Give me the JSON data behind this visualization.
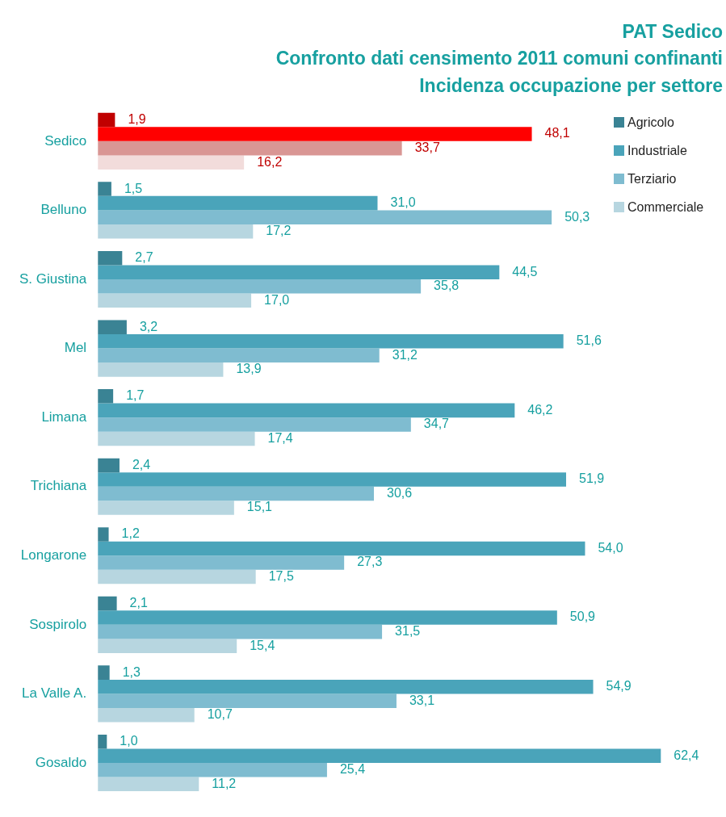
{
  "chart_data": {
    "type": "bar",
    "orientation": "horizontal",
    "title": "PAT Sedico",
    "subtitle": "Confronto dati censimento 2011 comuni confinanti",
    "annotations": [
      "Incidenza occupazione per settore"
    ],
    "categories": [
      "Sedico",
      "Belluno",
      "S. Giustina",
      "Mel",
      "Limana",
      "Trichiana",
      "Longarone",
      "Sospirolo",
      "La Valle A.",
      "Gosaldo"
    ],
    "series": [
      {
        "name": "Agricolo",
        "color": "#3a8394",
        "colors": [
          "#c00000",
          "#3a8394",
          "#3a8394",
          "#3a8394",
          "#3a8394",
          "#3a8394",
          "#3a8394",
          "#3a8394",
          "#3a8394",
          "#3a8394"
        ],
        "values": [
          1.9,
          1.5,
          2.7,
          3.2,
          1.7,
          2.4,
          1.2,
          2.1,
          1.3,
          1.0
        ],
        "value_labels": [
          "1,9",
          "1,5",
          "2,7",
          "3,2",
          "1,7",
          "2,4",
          "1,2",
          "2,1",
          "1,3",
          "1,0"
        ]
      },
      {
        "name": "Industriale",
        "color": "#4aa4ba",
        "colors": [
          "#ff0000",
          "#4aa4ba",
          "#4aa4ba",
          "#4aa4ba",
          "#4aa4ba",
          "#4aa4ba",
          "#4aa4ba",
          "#4aa4ba",
          "#4aa4ba",
          "#4aa4ba"
        ],
        "values": [
          48.1,
          31.0,
          44.5,
          51.6,
          46.2,
          51.9,
          54.0,
          50.9,
          54.9,
          62.4
        ],
        "value_labels": [
          "48,1",
          "31,0",
          "44,5",
          "51,6",
          "46,2",
          "51,9",
          "54,0",
          "50,9",
          "54,9",
          "62,4"
        ]
      },
      {
        "name": "Terziario",
        "color": "#7fbcd0",
        "colors": [
          "#d99694",
          "#7fbcd0",
          "#7fbcd0",
          "#7fbcd0",
          "#7fbcd0",
          "#7fbcd0",
          "#7fbcd0",
          "#7fbcd0",
          "#7fbcd0",
          "#7fbcd0"
        ],
        "values": [
          33.7,
          50.3,
          35.8,
          31.2,
          34.7,
          30.6,
          27.3,
          31.5,
          33.1,
          25.4
        ],
        "value_labels": [
          "33,7",
          "50,3",
          "35,8",
          "31,2",
          "34,7",
          "30,6",
          "27,3",
          "31,5",
          "33,1",
          "25,4"
        ]
      },
      {
        "name": "Commerciale",
        "color": "#b7d6e0",
        "colors": [
          "#f2dcdb",
          "#b7d6e0",
          "#b7d6e0",
          "#b7d6e0",
          "#b7d6e0",
          "#b7d6e0",
          "#b7d6e0",
          "#b7d6e0",
          "#b7d6e0",
          "#b7d6e0"
        ],
        "values": [
          16.2,
          17.2,
          17.0,
          13.9,
          17.4,
          15.1,
          17.5,
          15.4,
          10.7,
          11.2
        ],
        "value_labels": [
          "16,2",
          "17,2",
          "17,0",
          "13,9",
          "17,4",
          "15,1",
          "17,5",
          "15,4",
          "10,7",
          "11,2"
        ]
      }
    ],
    "legend": "top right",
    "tick_labels": "y"
  }
}
